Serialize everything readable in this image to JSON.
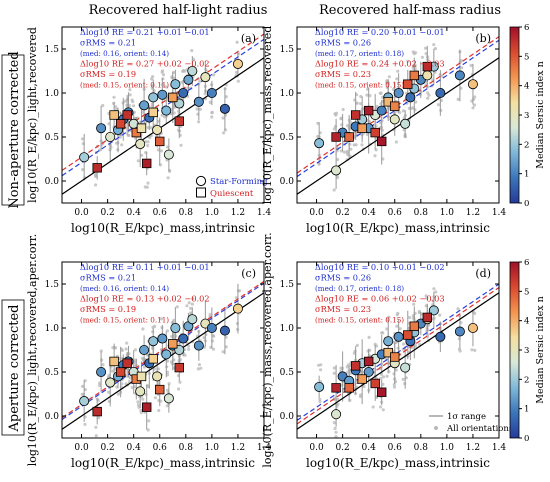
{
  "colors": {
    "one_to_one": "#000000",
    "fit_star_forming": "#2b3fe0",
    "fit_quiescent": "#e03030",
    "background_points": "#b8b8b8",
    "stat_blue": "#1f2fd0",
    "stat_red": "#d42020"
  },
  "columns": [
    "Recovered half-light radius",
    "Recovered half-mass radius"
  ],
  "rows": [
    "Non-aperture corrected",
    "Aperture corrected"
  ],
  "colorbar": {
    "label": "Median Sersic index n",
    "ticks": [
      "0",
      "1",
      "2",
      "3",
      "4",
      "5",
      "6"
    ],
    "stops": [
      "#253a99",
      "#3c75b8",
      "#7fb8d8",
      "#d8e8d8",
      "#f4e0a0",
      "#f39550",
      "#d84a30",
      "#a0102a"
    ],
    "range": [
      0,
      6
    ]
  },
  "legend": {
    "star_forming": "Star-Forming",
    "quiescent": "Quiescent",
    "range": "1σ range",
    "all": "All orientations"
  },
  "chart_data": [
    {
      "type": "scatter",
      "panel": "(a)",
      "column_title": "Recovered half-light radius",
      "xlabel": "log10(R_E/kpc)_mass,intrinsic",
      "ylabel": "log10(R_E/kpc)_light,recovered",
      "xlim": [
        -0.15,
        1.4
      ],
      "ylim": [
        -0.25,
        1.75
      ],
      "xticks": [
        "0.0",
        "0.2",
        "0.4",
        "0.6",
        "0.8",
        "1.0",
        "1.2",
        "1.4"
      ],
      "yticks": [
        "0.0",
        "0.5",
        "1.0",
        "1.5"
      ],
      "stats": [
        "Δlog10 RE = 0.21 +0.01 −0.01",
        "σRMS = 0.21",
        "(med: 0.16, orient: 0.14)",
        "Δlog10 RE = 0.27 +0.02 −0.02",
        "σRMS = 0.19",
        "(med: 0.15, orient: 0.11)"
      ],
      "fit_sf": {
        "intercept": 0.21,
        "slope": 1.0
      },
      "fit_q": {
        "intercept": 0.27,
        "slope": 1.0
      },
      "star_forming": [
        [
          0.02,
          0.27,
          2.1
        ],
        [
          0.15,
          0.6,
          1.2
        ],
        [
          0.22,
          0.5,
          2.8
        ],
        [
          0.28,
          0.58,
          1.6
        ],
        [
          0.32,
          0.7,
          0.9
        ],
        [
          0.36,
          0.78,
          1.1
        ],
        [
          0.4,
          0.65,
          2.5
        ],
        [
          0.45,
          0.42,
          2.9
        ],
        [
          0.48,
          0.86,
          1.4
        ],
        [
          0.52,
          0.72,
          0.8
        ],
        [
          0.55,
          0.95,
          1.9
        ],
        [
          0.58,
          0.58,
          3.1
        ],
        [
          0.62,
          0.98,
          1.3
        ],
        [
          0.65,
          0.8,
          1.7
        ],
        [
          0.67,
          0.3,
          2.6
        ],
        [
          0.7,
          0.95,
          1.0
        ],
        [
          0.72,
          1.1,
          1.8
        ],
        [
          0.75,
          0.88,
          2.2
        ],
        [
          0.78,
          1.0,
          0.7
        ],
        [
          0.82,
          1.15,
          1.5
        ],
        [
          0.85,
          1.25,
          2.3
        ],
        [
          0.9,
          0.9,
          1.2
        ],
        [
          0.95,
          1.18,
          3.0
        ],
        [
          1.0,
          1.0,
          1.0
        ],
        [
          1.1,
          0.82,
          0.6
        ],
        [
          1.2,
          1.33,
          3.6
        ]
      ],
      "quiescent": [
        [
          0.12,
          0.15,
          5.6
        ],
        [
          0.25,
          0.75,
          3.8
        ],
        [
          0.3,
          0.65,
          5.2
        ],
        [
          0.35,
          0.75,
          5.5
        ],
        [
          0.42,
          0.55,
          4.6
        ],
        [
          0.46,
          0.6,
          3.2
        ],
        [
          0.5,
          0.2,
          5.8
        ],
        [
          0.55,
          0.78,
          3.6
        ],
        [
          0.6,
          0.45,
          4.9
        ],
        [
          0.7,
          0.95,
          4.2
        ],
        [
          0.75,
          0.68,
          5.4
        ]
      ]
    },
    {
      "type": "scatter",
      "panel": "(b)",
      "column_title": "Recovered half-mass radius",
      "xlabel": "log10(R_E/kpc)_mass,intrinsic",
      "ylabel": "log10(R_E/kpc)_mass,recovered",
      "xlim": [
        -0.15,
        1.4
      ],
      "ylim": [
        -0.25,
        1.75
      ],
      "xticks": [
        "0.0",
        "0.2",
        "0.4",
        "0.6",
        "0.8",
        "1.0",
        "1.2",
        "1.4"
      ],
      "yticks": [
        "0.0",
        "0.5",
        "1.0",
        "1.5"
      ],
      "stats": [
        "Δlog10 RE = 0.20 +0.01 −0.01",
        "σRMS = 0.26",
        "(med: 0.17, orient: 0.18)",
        "Δlog10 RE = 0.24 +0.02 −0.03",
        "σRMS = 0.23",
        "(med: 0.15, orient: 0.15)"
      ],
      "fit_sf": {
        "intercept": 0.2,
        "slope": 1.0
      },
      "fit_q": {
        "intercept": 0.24,
        "slope": 1.0
      },
      "star_forming": [
        [
          0.02,
          0.43,
          1.8
        ],
        [
          0.15,
          0.12,
          2.7
        ],
        [
          0.2,
          0.55,
          1.0
        ],
        [
          0.25,
          0.5,
          1.4
        ],
        [
          0.3,
          0.62,
          0.9
        ],
        [
          0.35,
          0.7,
          2.1
        ],
        [
          0.4,
          0.6,
          1.3
        ],
        [
          0.45,
          0.75,
          2.6
        ],
        [
          0.5,
          0.8,
          1.0
        ],
        [
          0.55,
          0.95,
          1.6
        ],
        [
          0.6,
          0.7,
          2.9
        ],
        [
          0.63,
          1.0,
          1.2
        ],
        [
          0.68,
          0.65,
          2.4
        ],
        [
          0.72,
          0.95,
          0.8
        ],
        [
          0.75,
          1.05,
          1.9
        ],
        [
          0.8,
          1.15,
          1.1
        ],
        [
          0.85,
          1.2,
          3.2
        ],
        [
          0.9,
          1.3,
          2.0
        ],
        [
          0.95,
          1.0,
          0.7
        ],
        [
          1.1,
          1.2,
          1.1
        ],
        [
          1.2,
          1.1,
          3.8
        ]
      ],
      "quiescent": [
        [
          0.15,
          0.5,
          5.7
        ],
        [
          0.25,
          0.5,
          4.8
        ],
        [
          0.3,
          0.75,
          5.5
        ],
        [
          0.35,
          0.6,
          4.2
        ],
        [
          0.4,
          0.8,
          5.8
        ],
        [
          0.45,
          0.55,
          5.3
        ],
        [
          0.5,
          0.45,
          5.9
        ],
        [
          0.55,
          0.9,
          3.9
        ],
        [
          0.6,
          0.85,
          4.5
        ],
        [
          0.7,
          1.1,
          5.1
        ],
        [
          0.75,
          1.2,
          4.6
        ],
        [
          0.85,
          1.3,
          5.6
        ]
      ]
    },
    {
      "type": "scatter",
      "panel": "(c)",
      "xlabel": "log10(R_E/kpc)_mass,intrinsic",
      "ylabel": "log10(R_E/kpc)_light,recovered,aper.corr.",
      "xlim": [
        -0.15,
        1.4
      ],
      "ylim": [
        -0.25,
        1.75
      ],
      "xticks": [
        "0.0",
        "0.2",
        "0.4",
        "0.6",
        "0.8",
        "1.0",
        "1.2",
        "1.4"
      ],
      "yticks": [
        "0.0",
        "0.5",
        "1.0",
        "1.5"
      ],
      "stats": [
        "Δlog10 RE = 0.11 +0.01 −0.01",
        "σRMS = 0.21",
        "(med: 0.16, orient: 0.14)",
        "Δlog10 RE = 0.13 +0.02 −0.02",
        "σRMS = 0.19",
        "(med: 0.15, orient: 0.11)"
      ],
      "fit_sf": {
        "intercept": 0.11,
        "slope": 1.0
      },
      "fit_q": {
        "intercept": 0.13,
        "slope": 1.0
      },
      "star_forming": [
        [
          0.02,
          0.17,
          2.1
        ],
        [
          0.15,
          0.5,
          1.2
        ],
        [
          0.22,
          0.38,
          2.8
        ],
        [
          0.28,
          0.45,
          1.6
        ],
        [
          0.32,
          0.58,
          0.9
        ],
        [
          0.36,
          0.62,
          1.1
        ],
        [
          0.4,
          0.5,
          2.5
        ],
        [
          0.45,
          0.28,
          2.9
        ],
        [
          0.48,
          0.75,
          1.4
        ],
        [
          0.52,
          0.6,
          0.8
        ],
        [
          0.55,
          0.85,
          1.9
        ],
        [
          0.58,
          0.45,
          3.1
        ],
        [
          0.62,
          0.88,
          1.3
        ],
        [
          0.65,
          0.7,
          1.7
        ],
        [
          0.67,
          0.2,
          2.6
        ],
        [
          0.7,
          0.8,
          1.0
        ],
        [
          0.72,
          1.0,
          1.8
        ],
        [
          0.75,
          0.75,
          2.2
        ],
        [
          0.78,
          0.88,
          0.7
        ],
        [
          0.82,
          1.02,
          1.5
        ],
        [
          0.85,
          1.1,
          2.3
        ],
        [
          0.9,
          0.8,
          1.2
        ],
        [
          0.95,
          1.05,
          3.0
        ],
        [
          1.0,
          1.0,
          1.0
        ],
        [
          1.1,
          0.97,
          0.6
        ],
        [
          1.2,
          1.22,
          3.6
        ]
      ],
      "quiescent": [
        [
          0.12,
          0.05,
          5.6
        ],
        [
          0.25,
          0.62,
          3.8
        ],
        [
          0.3,
          0.5,
          5.2
        ],
        [
          0.35,
          0.6,
          5.5
        ],
        [
          0.42,
          0.42,
          4.6
        ],
        [
          0.46,
          0.45,
          3.2
        ],
        [
          0.5,
          0.1,
          5.8
        ],
        [
          0.55,
          0.65,
          3.6
        ],
        [
          0.6,
          0.3,
          4.9
        ],
        [
          0.7,
          0.82,
          4.2
        ],
        [
          0.75,
          0.55,
          5.4
        ]
      ]
    },
    {
      "type": "scatter",
      "panel": "(d)",
      "xlabel": "log10(R_E/kpc)_mass,intrinsic",
      "ylabel": "log10(R_E/kpc)_mass,recovered,aper.corr.",
      "xlim": [
        -0.15,
        1.4
      ],
      "ylim": [
        -0.25,
        1.75
      ],
      "xticks": [
        "0.0",
        "0.2",
        "0.4",
        "0.6",
        "0.8",
        "1.0",
        "1.2",
        "1.4"
      ],
      "yticks": [
        "0.0",
        "0.5",
        "1.0",
        "1.5"
      ],
      "stats": [
        "Δlog10 RE = 0.10 +0.01 −0.02",
        "σRMS = 0.26",
        "(med: 0.17, orient: 0.18)",
        "Δlog10 RE = 0.06 +0.02 −0.03",
        "σRMS = 0.23",
        "(med: 0.15, orient: 0.15)"
      ],
      "fit_sf": {
        "intercept": 0.1,
        "slope": 1.0
      },
      "fit_q": {
        "intercept": 0.06,
        "slope": 1.0
      },
      "star_forming": [
        [
          0.02,
          0.33,
          1.8
        ],
        [
          0.15,
          0.02,
          2.7
        ],
        [
          0.2,
          0.45,
          1.0
        ],
        [
          0.25,
          0.4,
          1.4
        ],
        [
          0.3,
          0.52,
          0.9
        ],
        [
          0.35,
          0.6,
          2.1
        ],
        [
          0.4,
          0.5,
          1.3
        ],
        [
          0.45,
          0.65,
          2.6
        ],
        [
          0.5,
          0.7,
          1.0
        ],
        [
          0.55,
          0.85,
          1.6
        ],
        [
          0.6,
          0.6,
          2.9
        ],
        [
          0.63,
          0.9,
          1.2
        ],
        [
          0.68,
          0.55,
          2.4
        ],
        [
          0.72,
          0.85,
          0.8
        ],
        [
          0.75,
          0.95,
          1.9
        ],
        [
          0.8,
          1.05,
          1.1
        ],
        [
          0.85,
          1.1,
          3.2
        ],
        [
          0.9,
          1.2,
          2.0
        ],
        [
          0.95,
          0.9,
          0.7
        ],
        [
          1.1,
          0.96,
          1.1
        ],
        [
          1.2,
          1.0,
          3.8
        ]
      ],
      "quiescent": [
        [
          0.15,
          0.32,
          5.7
        ],
        [
          0.25,
          0.32,
          4.8
        ],
        [
          0.3,
          0.57,
          5.5
        ],
        [
          0.35,
          0.42,
          4.2
        ],
        [
          0.4,
          0.62,
          5.8
        ],
        [
          0.45,
          0.37,
          5.3
        ],
        [
          0.5,
          0.27,
          5.9
        ],
        [
          0.55,
          0.72,
          3.9
        ],
        [
          0.6,
          0.67,
          4.5
        ],
        [
          0.7,
          0.92,
          5.1
        ],
        [
          0.75,
          1.02,
          4.6
        ],
        [
          0.85,
          1.12,
          5.6
        ]
      ]
    }
  ]
}
